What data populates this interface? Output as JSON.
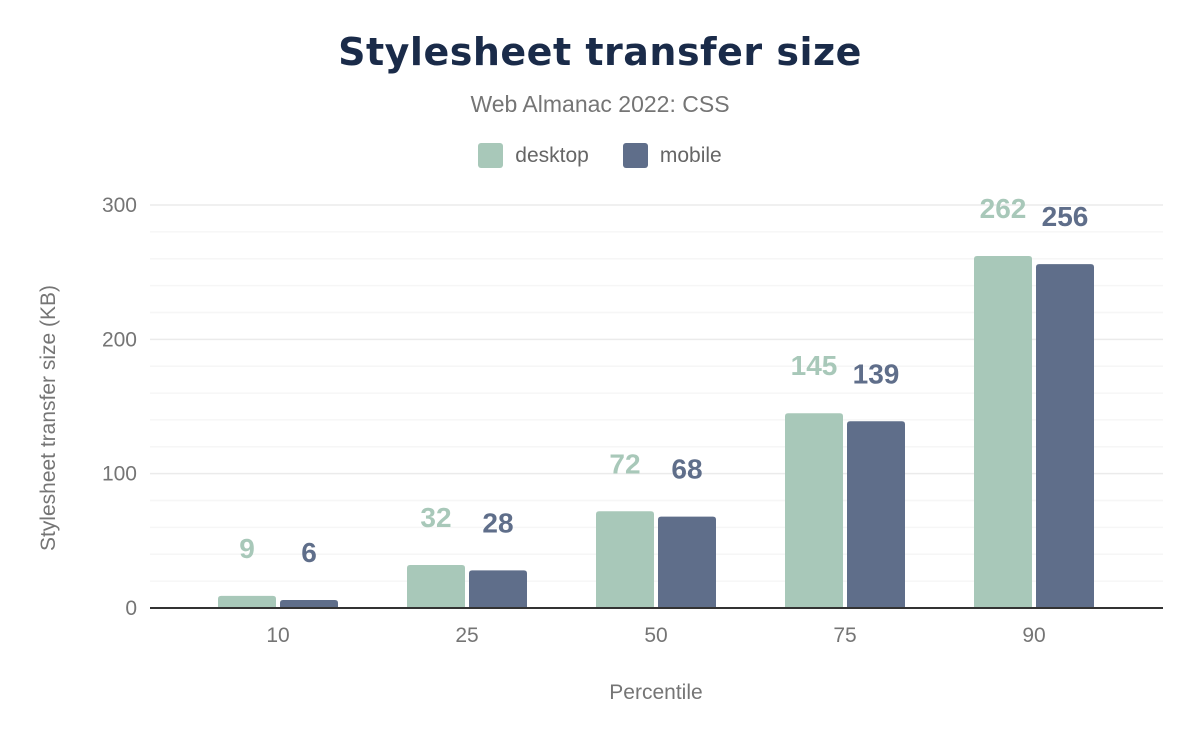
{
  "chart_data": {
    "type": "bar",
    "title": "Stylesheet transfer size",
    "subtitle": "Web Almanac 2022: CSS",
    "xlabel": "Percentile",
    "ylabel": "Stylesheet transfer size (KB)",
    "categories": [
      "10",
      "25",
      "50",
      "75",
      "90"
    ],
    "series": [
      {
        "name": "desktop",
        "values": [
          9,
          32,
          72,
          145,
          262
        ],
        "color": "#a8c8b9"
      },
      {
        "name": "mobile",
        "values": [
          6,
          28,
          68,
          139,
          256
        ],
        "color": "#5f6e8a"
      }
    ],
    "ylim": [
      0,
      300
    ],
    "yticks": [
      "0",
      "100",
      "200",
      "300"
    ],
    "grid": true,
    "legend": "top-center",
    "data_labels": true
  }
}
